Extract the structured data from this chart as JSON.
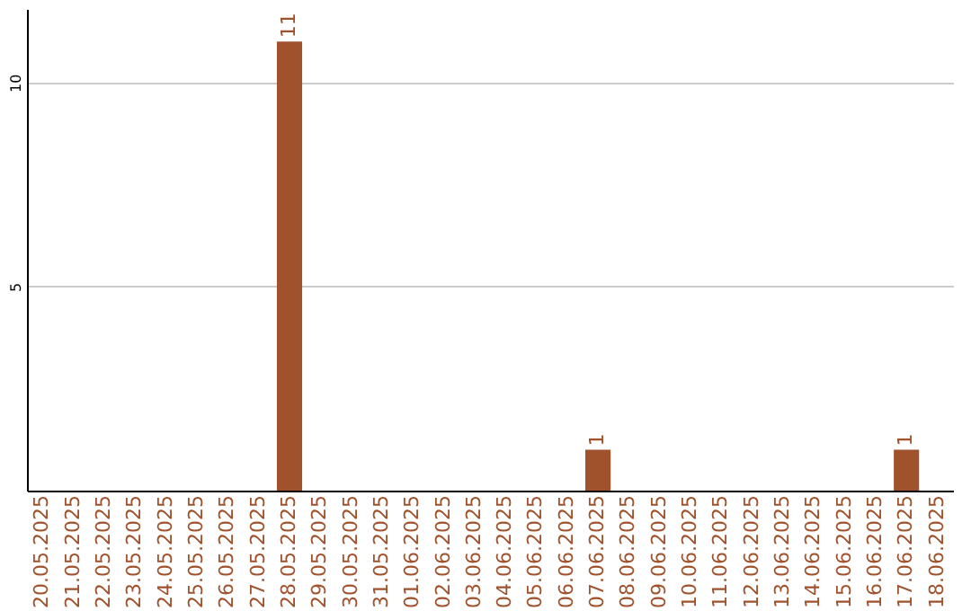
{
  "chart_data": {
    "type": "bar",
    "categories": [
      "20.05.2025",
      "21.05.2025",
      "22.05.2025",
      "23.05.2025",
      "24.05.2025",
      "25.05.2025",
      "26.05.2025",
      "27.05.2025",
      "28.05.2025",
      "29.05.2025",
      "30.05.2025",
      "31.05.2025",
      "01.06.2025",
      "02.06.2025",
      "03.06.2025",
      "04.06.2025",
      "05.06.2025",
      "06.06.2025",
      "07.06.2025",
      "08.06.2025",
      "09.06.2025",
      "10.06.2025",
      "11.06.2025",
      "12.06.2025",
      "13.06.2025",
      "14.06.2025",
      "15.06.2025",
      "16.06.2025",
      "17.06.2025",
      "18.06.2025"
    ],
    "values": [
      0,
      0,
      0,
      0,
      0,
      0,
      0,
      0,
      11,
      0,
      0,
      0,
      0,
      0,
      0,
      0,
      0,
      0,
      1,
      0,
      0,
      0,
      0,
      0,
      0,
      0,
      0,
      0,
      1,
      0
    ],
    "value_labels": [
      null,
      null,
      null,
      null,
      null,
      null,
      null,
      null,
      "11",
      null,
      null,
      null,
      null,
      null,
      null,
      null,
      null,
      null,
      "1",
      null,
      null,
      null,
      null,
      null,
      null,
      null,
      null,
      null,
      "1",
      null
    ],
    "color": "#a0522d",
    "ylim": [
      0,
      11.8
    ],
    "yticks": [
      5,
      10
    ],
    "grid": "y"
  }
}
